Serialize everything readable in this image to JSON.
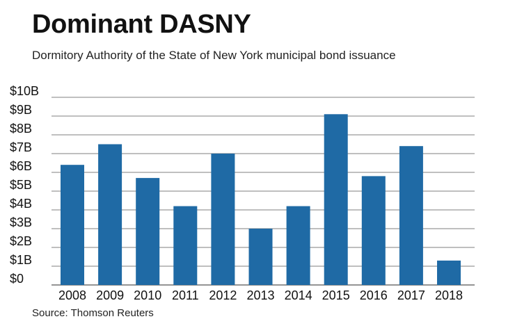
{
  "header": {
    "title": "Dominant DASNY",
    "subtitle": "Dormitory Authority of the State of New York municipal bond issuance"
  },
  "footer": {
    "source": "Source: Thomson Reuters"
  },
  "colors": {
    "bar": "#1f6aa5",
    "grid": "#555555"
  },
  "chart_data": {
    "type": "bar",
    "title": "Dominant DASNY",
    "subtitle": "Dormitory Authority of the State of New York municipal bond issuance",
    "xlabel": "",
    "ylabel": "",
    "categories": [
      "2008",
      "2009",
      "2010",
      "2011",
      "2012",
      "2013",
      "2014",
      "2015",
      "2016",
      "2017",
      "2018"
    ],
    "values": [
      6.4,
      7.5,
      5.7,
      4.2,
      7.0,
      3.0,
      4.2,
      9.1,
      5.8,
      7.4,
      1.3
    ],
    "ylim": [
      0,
      10
    ],
    "yticks": [
      "$0",
      "$1B",
      "$2B",
      "$3B",
      "$4B",
      "$5B",
      "$6B",
      "$7B",
      "$8B",
      "$9B",
      "$10B"
    ],
    "grid": true,
    "legend": "none"
  }
}
